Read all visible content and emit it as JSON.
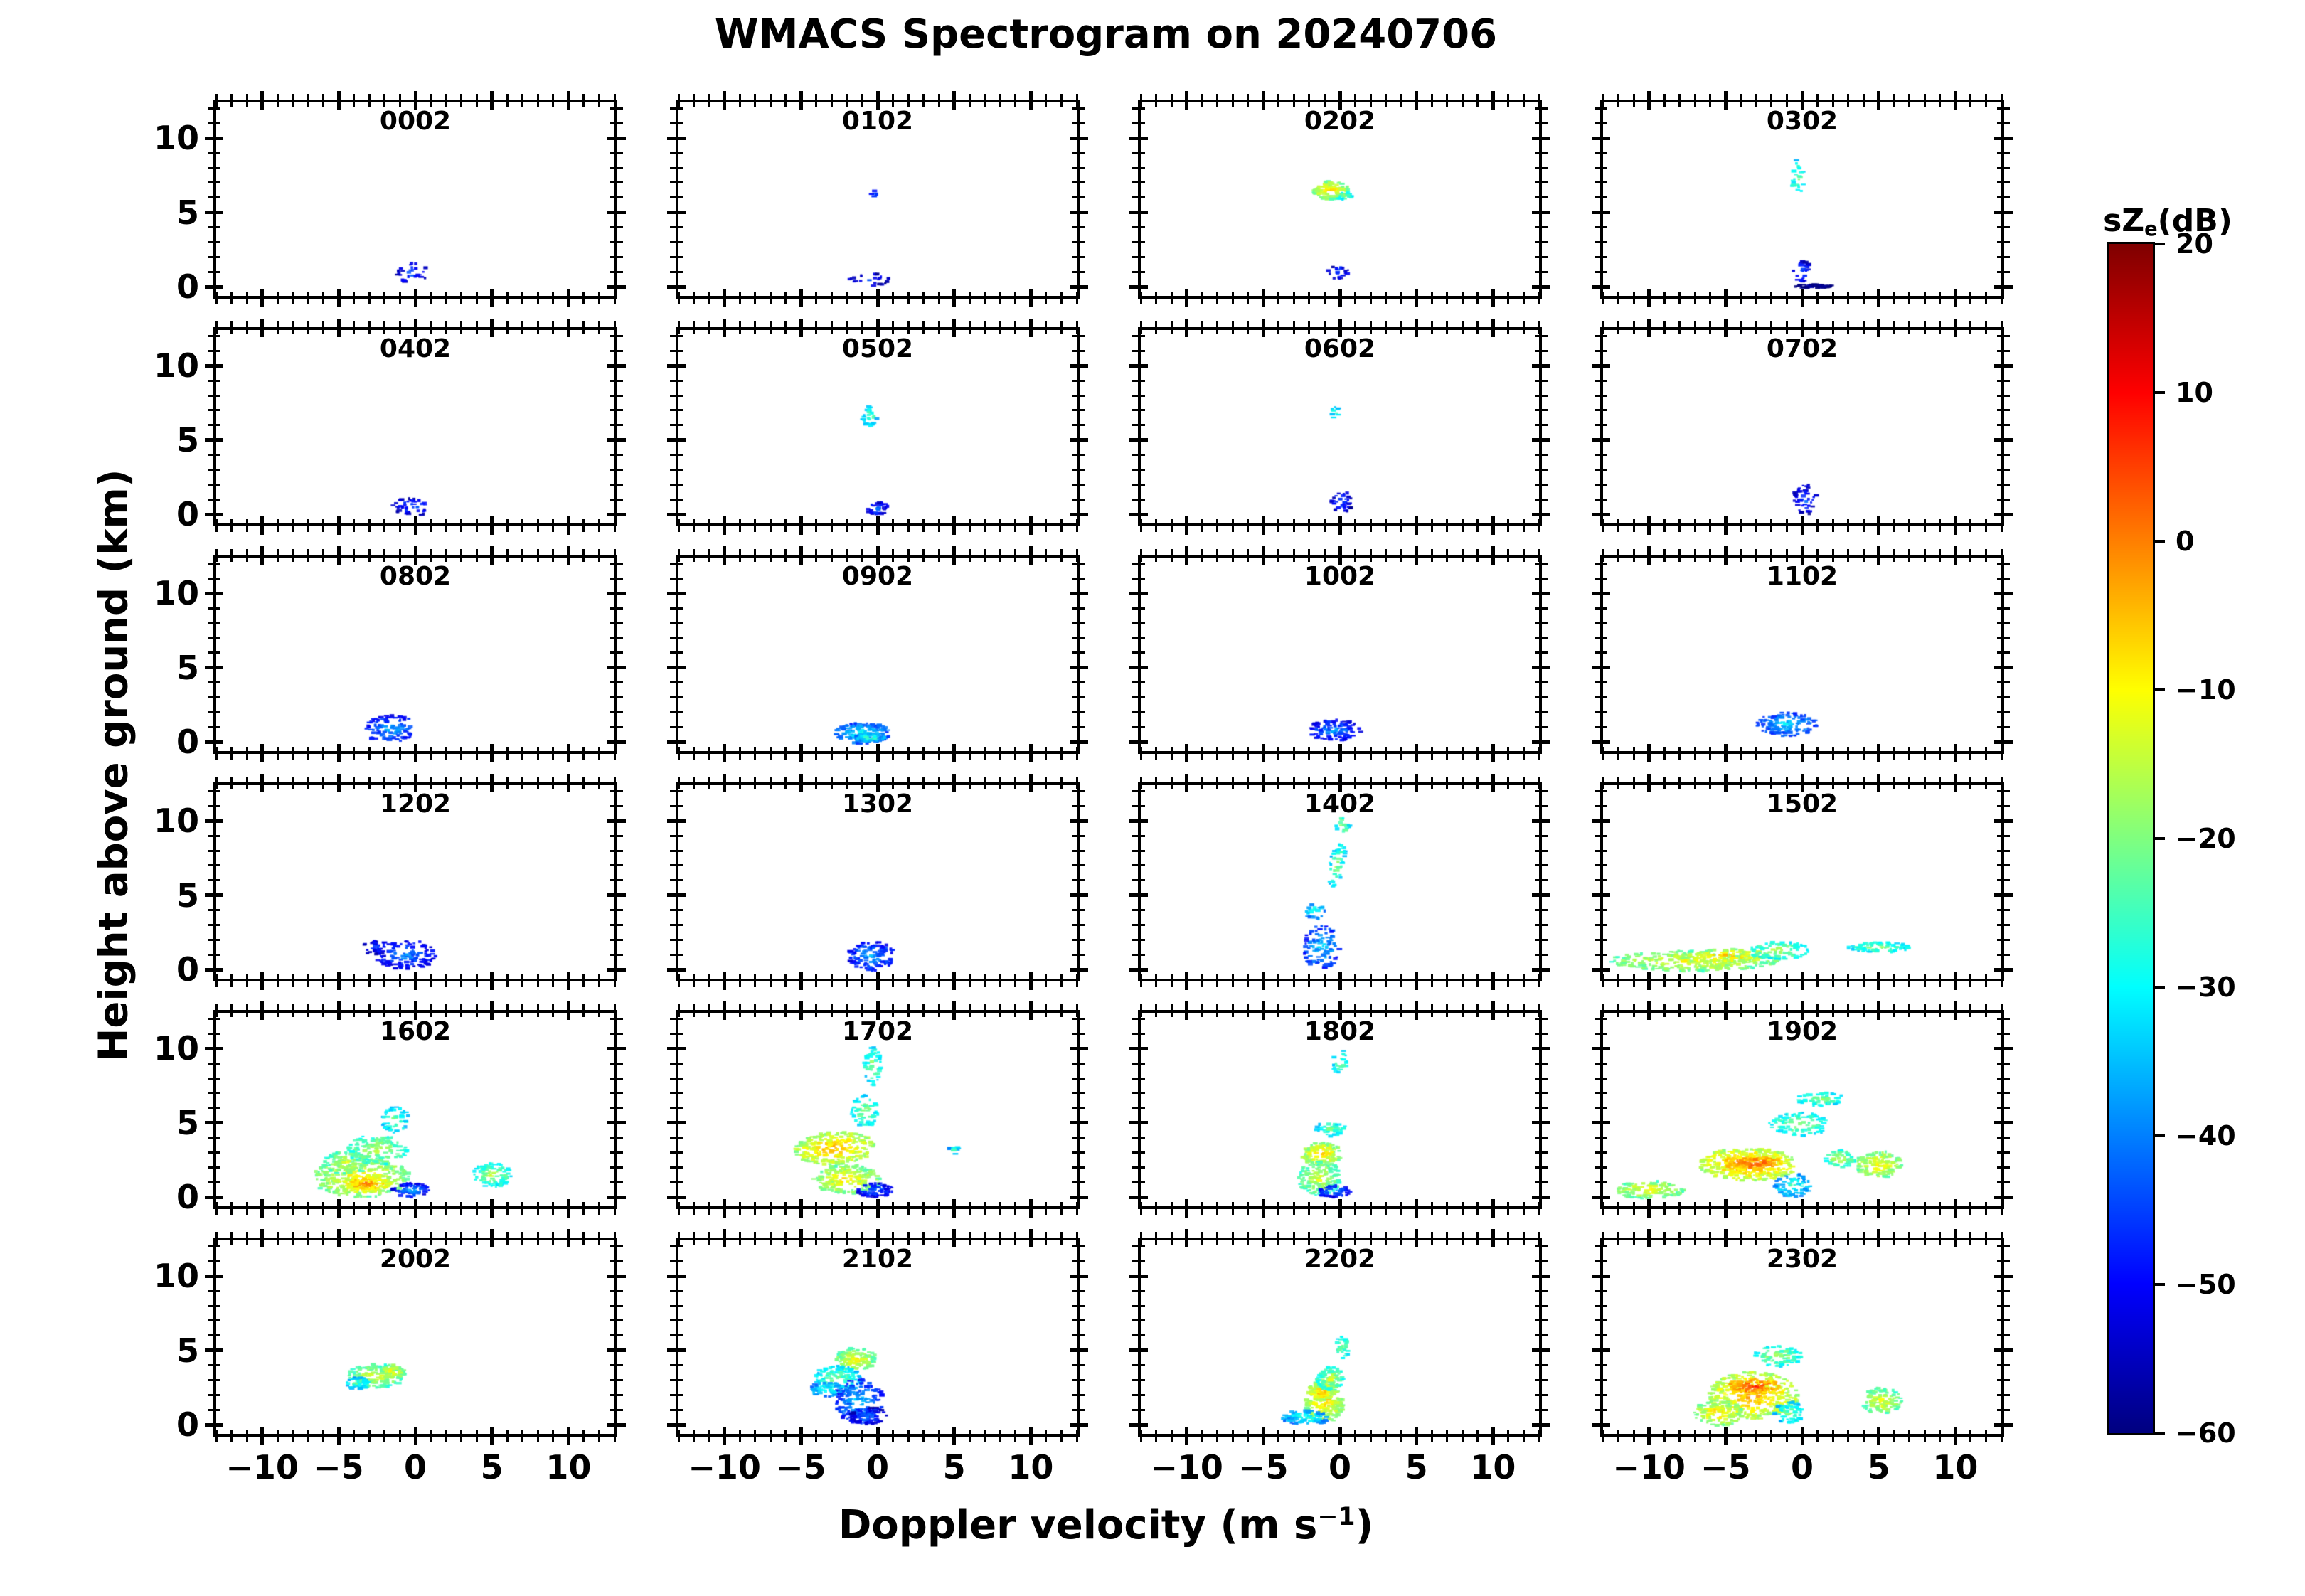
{
  "title": "WMACS Spectrogram on 20240706",
  "axis_labels": {
    "x_prefix": "Doppler velocity (m s",
    "x_sup": "−1",
    "x_suffix": ")",
    "y": "Height above ground (km)"
  },
  "colorbar": {
    "title_prefix": "sZ",
    "title_sub": "e",
    "title_suffix": "(dB)",
    "tick_values": [
      20,
      10,
      0,
      -10,
      -20,
      -30,
      -40,
      -50,
      -60
    ],
    "tick_labels": [
      "20",
      "10",
      "0",
      "−10",
      "−20",
      "−30",
      "−40",
      "−50",
      "−60"
    ],
    "vmin": -60,
    "vmax": 20,
    "colormap": "jet",
    "top_color": "#7f0000",
    "bottom_color": "#00007f"
  },
  "chart_data": {
    "type": "heatmap",
    "layout": "6 rows x 4 columns of hourly Doppler spectrogram panels",
    "xlabel": "Doppler velocity (m s−1)",
    "ylabel": "Height above ground (km)",
    "xlim": [
      -13,
      13
    ],
    "ylim": [
      -0.6,
      12.4
    ],
    "x_ticks": {
      "major": [
        -10,
        -5,
        0,
        5,
        10
      ],
      "labels": [
        "−10",
        "−5",
        "0",
        "5",
        "10"
      ],
      "minor_step": 1
    },
    "y_ticks": {
      "major": [
        0,
        5,
        10
      ],
      "labels": [
        "0",
        "5",
        "10"
      ],
      "minor_step": 1
    },
    "value_range_dB": [
      -60,
      20
    ],
    "colormap": "jet",
    "blob_fields": [
      "velocity_mps",
      "height_km",
      "rx_mps",
      "ry_km",
      "intensity_dB",
      "points",
      "x_tilt"
    ],
    "panels": [
      {
        "time": "0002",
        "blobs": [
          [
            -0.2,
            0.9,
            1.0,
            0.8,
            -46,
            28
          ]
        ]
      },
      {
        "time": "0102",
        "blobs": [
          [
            -0.6,
            0.5,
            1.4,
            0.5,
            -47,
            24
          ],
          [
            -0.2,
            6.2,
            0.3,
            0.3,
            -43,
            5
          ]
        ]
      },
      {
        "time": "0202",
        "blobs": [
          [
            -0.6,
            6.5,
            1.2,
            0.6,
            -11,
            120
          ],
          [
            0.3,
            6.1,
            0.5,
            0.3,
            -22,
            25
          ],
          [
            -0.1,
            1.0,
            0.7,
            0.5,
            -46,
            20
          ]
        ]
      },
      {
        "time": "0302",
        "blobs": [
          [
            -0.3,
            7.3,
            0.4,
            1.3,
            -23,
            24
          ],
          [
            0.0,
            1.0,
            0.6,
            0.8,
            -45,
            28
          ],
          [
            0.8,
            0.05,
            1.4,
            0.12,
            -57,
            50
          ]
        ]
      },
      {
        "time": "0402",
        "blobs": [
          [
            -0.2,
            0.5,
            1.3,
            0.6,
            -46,
            42
          ]
        ]
      },
      {
        "time": "0502",
        "blobs": [
          [
            -0.5,
            6.6,
            0.5,
            0.7,
            -24,
            30
          ],
          [
            0.0,
            0.4,
            0.7,
            0.45,
            -44,
            32
          ]
        ]
      },
      {
        "time": "0602",
        "blobs": [
          [
            -0.3,
            6.9,
            0.25,
            0.45,
            -26,
            9
          ],
          [
            0.1,
            0.9,
            0.7,
            0.9,
            -46,
            34
          ]
        ]
      },
      {
        "time": "0702",
        "blobs": [
          [
            0.2,
            1.0,
            0.8,
            1.0,
            -46,
            44
          ]
        ]
      },
      {
        "time": "0802",
        "blobs": [
          [
            -1.6,
            0.9,
            1.8,
            0.9,
            -40,
            110
          ]
        ]
      },
      {
        "time": "0902",
        "blobs": [
          [
            -1.0,
            0.6,
            1.8,
            0.7,
            -34,
            150
          ],
          [
            -0.5,
            0.3,
            1.0,
            0.3,
            -29,
            60
          ]
        ]
      },
      {
        "time": "1002",
        "blobs": [
          [
            -0.4,
            0.8,
            1.8,
            0.7,
            -42,
            110
          ]
        ]
      },
      {
        "time": "1102",
        "blobs": [
          [
            -1.0,
            1.2,
            2.0,
            0.8,
            -36,
            130
          ]
        ]
      },
      {
        "time": "1202",
        "blobs": [
          [
            -0.6,
            1.0,
            2.0,
            1.0,
            -43,
            130
          ],
          [
            -2.6,
            1.5,
            0.9,
            0.5,
            -46,
            28
          ]
        ]
      },
      {
        "time": "1302",
        "blobs": [
          [
            -0.4,
            0.9,
            1.5,
            1.0,
            -40,
            130
          ]
        ]
      },
      {
        "time": "1402",
        "blobs": [
          [
            -0.2,
            7.0,
            0.5,
            1.6,
            -23,
            48,
            0.15
          ],
          [
            0.2,
            9.7,
            0.45,
            0.7,
            -21,
            18
          ],
          [
            -1.2,
            1.5,
            1.2,
            1.5,
            -37,
            95
          ],
          [
            -1.6,
            3.9,
            0.7,
            0.5,
            -30,
            22
          ]
        ]
      },
      {
        "time": "1502",
        "blobs": [
          [
            -7.0,
            0.6,
            5.5,
            0.7,
            -13,
            300
          ],
          [
            -5.0,
            0.9,
            3.0,
            0.5,
            -9,
            110
          ],
          [
            -1.5,
            1.3,
            2.0,
            0.6,
            -20,
            95
          ],
          [
            5.0,
            1.5,
            2.0,
            0.35,
            -22,
            75
          ]
        ]
      },
      {
        "time": "1602",
        "blobs": [
          [
            -3.5,
            1.3,
            3.2,
            1.3,
            -12,
            300
          ],
          [
            -3.2,
            0.9,
            1.6,
            0.6,
            -4,
            120
          ],
          [
            -2.5,
            3.2,
            2.0,
            1.0,
            -18,
            140
          ],
          [
            -4.5,
            2.3,
            1.5,
            0.8,
            -16,
            85
          ],
          [
            -1.3,
            5.2,
            0.9,
            0.9,
            -24,
            48
          ],
          [
            5.0,
            1.5,
            1.3,
            0.8,
            -20,
            95
          ],
          [
            -0.3,
            0.5,
            1.2,
            0.5,
            -41,
            75
          ]
        ]
      },
      {
        "time": "1702",
        "blobs": [
          [
            -2.8,
            3.3,
            2.6,
            1.1,
            -8,
            260,
            0.3
          ],
          [
            -2.0,
            1.2,
            2.2,
            1.0,
            -12,
            190
          ],
          [
            -0.8,
            5.8,
            0.9,
            1.1,
            -22,
            58
          ],
          [
            -0.3,
            8.8,
            0.6,
            1.3,
            -22,
            48
          ],
          [
            -0.2,
            0.5,
            1.2,
            0.5,
            -43,
            75
          ],
          [
            5.0,
            3.2,
            0.4,
            0.3,
            -28,
            9
          ]
        ]
      },
      {
        "time": "1802",
        "blobs": [
          [
            -1.2,
            2.9,
            1.3,
            0.8,
            -10,
            140
          ],
          [
            -1.3,
            1.3,
            1.4,
            1.2,
            -16,
            160
          ],
          [
            -0.6,
            4.6,
            1.1,
            0.5,
            -24,
            44
          ],
          [
            0.0,
            9.1,
            0.45,
            0.9,
            -22,
            22
          ],
          [
            -0.4,
            0.4,
            1.1,
            0.4,
            -41,
            55
          ]
        ]
      },
      {
        "time": "1902",
        "blobs": [
          [
            -3.5,
            2.2,
            3.2,
            1.1,
            -6,
            320
          ],
          [
            -3.2,
            2.3,
            2.0,
            0.5,
            2,
            95
          ],
          [
            -10.0,
            0.5,
            2.3,
            0.6,
            -13,
            130
          ],
          [
            -0.2,
            4.9,
            2.0,
            0.8,
            -22,
            95
          ],
          [
            1.2,
            6.6,
            1.6,
            0.45,
            -22,
            58
          ],
          [
            5.0,
            2.2,
            1.5,
            0.9,
            -12,
            130
          ],
          [
            2.5,
            2.6,
            1.0,
            0.6,
            -18,
            55
          ],
          [
            -0.6,
            0.8,
            1.2,
            0.8,
            -29,
            75
          ]
        ]
      },
      {
        "time": "2002",
        "blobs": [
          [
            -2.5,
            3.3,
            1.9,
            0.8,
            -16,
            150
          ],
          [
            -3.8,
            2.8,
            0.8,
            0.4,
            -26,
            44
          ],
          [
            -1.5,
            3.6,
            0.8,
            0.5,
            -12,
            55
          ]
        ]
      },
      {
        "time": "2102",
        "blobs": [
          [
            -1.4,
            4.4,
            1.3,
            0.8,
            -14,
            120
          ],
          [
            -2.6,
            3.1,
            1.6,
            0.9,
            -24,
            110
          ],
          [
            -1.2,
            1.6,
            1.6,
            1.5,
            -38,
            170
          ],
          [
            -3.3,
            2.4,
            1.1,
            0.5,
            -30,
            55
          ],
          [
            -0.6,
            0.6,
            1.2,
            0.6,
            -45,
            65
          ]
        ]
      },
      {
        "time": "2202",
        "blobs": [
          [
            -1.0,
            1.6,
            1.3,
            1.5,
            -10,
            210
          ],
          [
            -1.2,
            2.2,
            0.8,
            0.6,
            -8,
            65
          ],
          [
            -0.6,
            3.1,
            0.9,
            0.8,
            -18,
            85
          ],
          [
            0.2,
            5.3,
            0.45,
            0.9,
            -22,
            30
          ],
          [
            -2.2,
            0.5,
            1.6,
            0.5,
            -30,
            95
          ]
        ]
      },
      {
        "time": "2302",
        "blobs": [
          [
            -3.2,
            2.0,
            2.9,
            1.6,
            -7,
            340
          ],
          [
            -3.2,
            2.6,
            1.7,
            0.5,
            3,
            95
          ],
          [
            -1.6,
            4.6,
            1.6,
            0.7,
            -20,
            95
          ],
          [
            5.2,
            1.6,
            1.3,
            0.9,
            -14,
            110
          ],
          [
            -5.5,
            0.8,
            1.6,
            0.9,
            -11,
            120
          ],
          [
            -0.8,
            0.8,
            1.0,
            0.8,
            -25,
            65
          ]
        ]
      }
    ]
  }
}
